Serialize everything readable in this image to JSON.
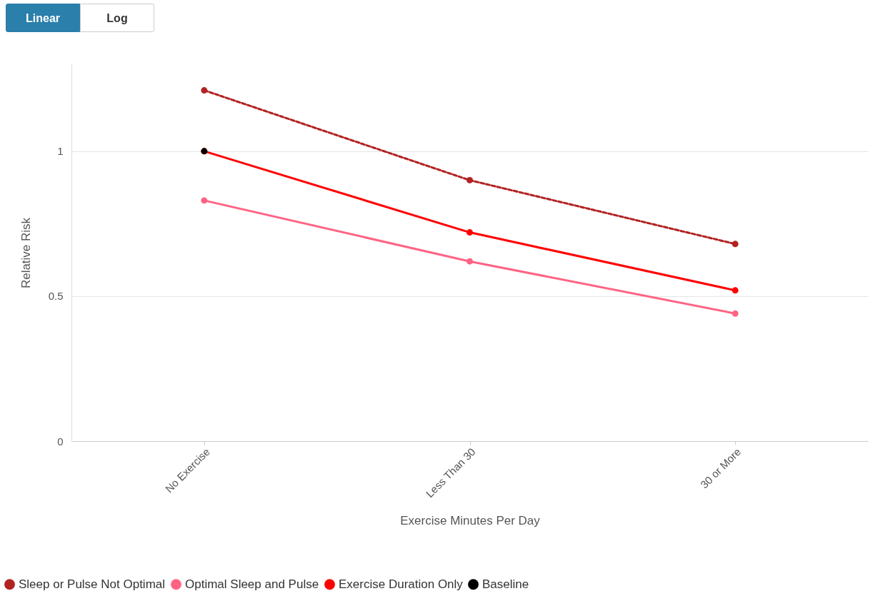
{
  "chart_data": {
    "type": "line",
    "xlabel": "Exercise Minutes Per Day",
    "ylabel": "Relative Risk",
    "categories": [
      "No Exercise",
      "Less Than 30",
      "30 or More"
    ],
    "series": [
      {
        "name": "Sleep or Pulse Not Optimal",
        "color": "#b22222",
        "line_style": "dashed",
        "values": [
          1.21,
          0.9,
          0.68
        ]
      },
      {
        "name": "Optimal Sleep and Pulse",
        "color": "#ff6384",
        "line_style": "solid",
        "values": [
          0.83,
          0.62,
          0.44
        ]
      },
      {
        "name": "Exercise Duration Only",
        "color": "#ff0000",
        "line_style": "solid",
        "values": [
          1.0,
          0.72,
          0.52
        ]
      },
      {
        "name": "Baseline",
        "color": "#000000",
        "type": "scatter",
        "values": [
          1.0,
          null,
          null
        ]
      }
    ],
    "ylim": [
      0,
      1.3
    ],
    "yticks": [
      0,
      0.5,
      1
    ],
    "grid": "y",
    "marker": "circle",
    "legend": "bottom",
    "annotations": [
      "Linear",
      "Log"
    ]
  }
}
